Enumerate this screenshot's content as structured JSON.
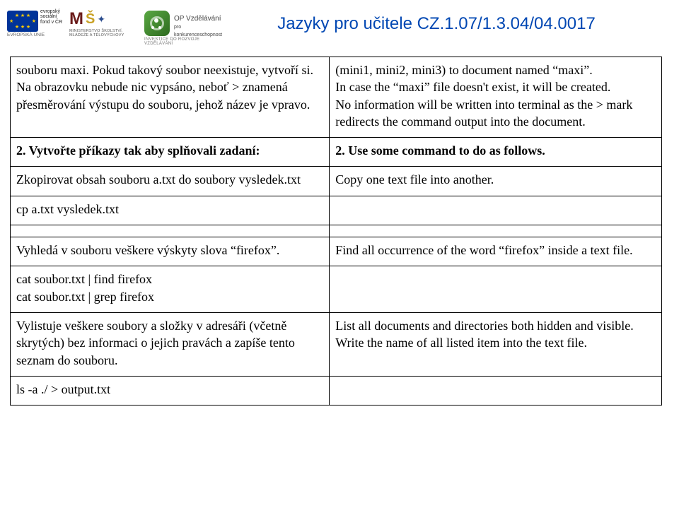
{
  "page": {
    "title": "Jazyky pro učitele CZ.1.07/1.3.04/04.0017",
    "title_color": "#0047b3",
    "logos": {
      "esf_top": "evropský\nsociální\nfond v ČR",
      "esf_sub": "EVROPSKÁ UNIE",
      "msmt_sub": "MINISTERSTVO ŠKOLSTVÍ,\nMLÁDEŽE A TĚLOVÝCHOVY",
      "opvk_main": "OP Vzdělávání",
      "opvk_sub1": "pro konkurenceschopnost",
      "opvk_sub2": "INVESTICE DO ROZVOJE VZDĚLÁVÁNÍ"
    }
  },
  "table": {
    "rows": [
      {
        "left": "souboru maxi. Pokud takový soubor neexistuje, vytvoří si. Na obrazovku nebude nic vypsáno, neboť > znamená přesměrování výstupu do souboru, jehož název je vpravo.",
        "right": "(mini1, mini2, mini3) to document named “maxi”.\nIn case the “maxi” file doesn't exist, it will be created.\nNo information will be written into terminal as the > mark redirects the command output into the document."
      },
      {
        "left_bold": "2. Vytvořte příkazy tak aby splňovali zadaní:",
        "right_bold": "2. Use some command to do as follows."
      },
      {
        "left": "Zkopirovat obsah souboru a.txt do soubory vysledek.txt",
        "right": "Copy one text file into another."
      },
      {
        "left": "cp a.txt vysledek.txt",
        "right": ""
      },
      {
        "left": "",
        "right": ""
      },
      {
        "left": "Vyhledá v souboru veškere výskyty slova “firefox”.",
        "right": "Find all occurrence of the word “firefox” inside a text file."
      },
      {
        "left": "cat soubor.txt | find firefox\ncat soubor.txt | grep firefox",
        "right": ""
      },
      {
        "left": "Vylistuje veškere soubory a složky v adresáři (včetně skrytých) bez informaci o jejich pravách a zapíše tento seznam do souboru.",
        "right": "List all documents and directories both hidden and visible. Write the name of all listed item into the text file."
      },
      {
        "left": "ls -a ./ > output.txt",
        "right": ""
      }
    ]
  }
}
